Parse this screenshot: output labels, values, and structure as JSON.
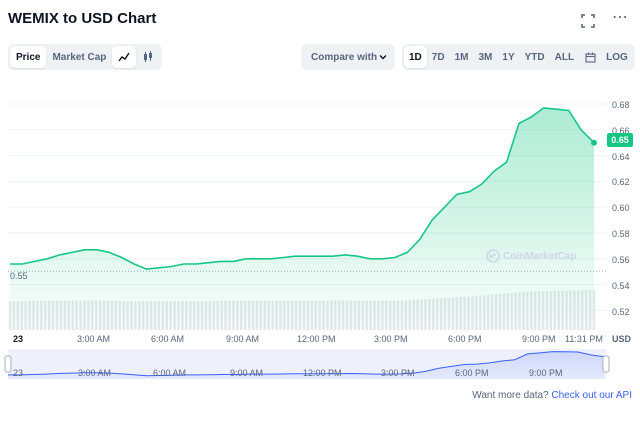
{
  "header": {
    "title": "WEMIX to USD Chart",
    "more_icon": "⋯"
  },
  "toolbar": {
    "tabs": [
      {
        "label": "Price",
        "active": true
      },
      {
        "label": "Market Cap",
        "active": false
      }
    ],
    "chart_types": [
      {
        "icon": "line-chart-icon",
        "active": true
      },
      {
        "icon": "candlestick-icon",
        "active": false
      }
    ],
    "compare_label": "Compare with",
    "ranges": [
      "1D",
      "7D",
      "1M",
      "3M",
      "1Y",
      "YTD",
      "ALL"
    ],
    "active_range": "1D",
    "log_label": "LOG"
  },
  "chart": {
    "current_price": "0.65",
    "open_price_label": "0.55",
    "currency": "USD",
    "watermark": "CoinMarketCap",
    "colors": {
      "line": "#16c784",
      "fill": "#16c784",
      "navigator_line": "#3861fb"
    }
  },
  "chart_data": {
    "type": "area",
    "title": "WEMIX to USD Chart",
    "xlabel": "",
    "ylabel": "USD",
    "x_ticks": [
      "23",
      "3:00 AM",
      "6:00 AM",
      "9:00 AM",
      "12:00 PM",
      "3:00 PM",
      "6:00 PM",
      "9:00 PM",
      "11:31 PM"
    ],
    "y_ticks": [
      "0.52",
      "0.54",
      "0.56",
      "0.58",
      "0.60",
      "0.62",
      "0.64",
      "0.66",
      "0.68"
    ],
    "ylim": [
      0.52,
      0.69
    ],
    "x_hours": [
      0,
      0.5,
      1,
      1.5,
      2,
      2.5,
      3,
      3.5,
      4,
      4.5,
      5,
      5.5,
      6,
      6.5,
      7,
      7.5,
      8,
      8.5,
      9,
      9.5,
      10,
      10.5,
      11,
      11.5,
      12,
      12.5,
      13,
      13.5,
      14,
      14.5,
      15,
      15.5,
      16,
      16.5,
      17,
      17.5,
      18,
      18.5,
      19,
      19.5,
      20,
      20.5,
      21,
      21.5,
      22,
      22.5,
      23,
      23.52
    ],
    "price": [
      0.556,
      0.556,
      0.558,
      0.56,
      0.563,
      0.565,
      0.567,
      0.567,
      0.565,
      0.561,
      0.556,
      0.552,
      0.553,
      0.554,
      0.556,
      0.556,
      0.557,
      0.558,
      0.558,
      0.56,
      0.56,
      0.56,
      0.561,
      0.562,
      0.562,
      0.562,
      0.562,
      0.563,
      0.562,
      0.56,
      0.56,
      0.561,
      0.565,
      0.575,
      0.59,
      0.6,
      0.61,
      0.612,
      0.618,
      0.628,
      0.635,
      0.665,
      0.67,
      0.677,
      0.676,
      0.675,
      0.66,
      0.65
    ],
    "volume_relative": [
      0.72,
      0.72,
      0.73,
      0.73,
      0.73,
      0.73,
      0.74,
      0.74,
      0.73,
      0.72,
      0.72,
      0.72,
      0.72,
      0.72,
      0.72,
      0.72,
      0.72,
      0.73,
      0.73,
      0.73,
      0.73,
      0.73,
      0.73,
      0.73,
      0.73,
      0.73,
      0.74,
      0.74,
      0.73,
      0.73,
      0.73,
      0.73,
      0.74,
      0.76,
      0.78,
      0.8,
      0.82,
      0.84,
      0.86,
      0.89,
      0.92,
      0.95,
      0.96,
      0.97,
      0.98,
      0.98,
      0.99,
      1.0
    ],
    "current_price": 0.65,
    "open_price": 0.55,
    "grid": true
  },
  "navigator": {
    "labels": [
      "23",
      "3:00 AM",
      "6:00 AM",
      "9:00 AM",
      "12:00 PM",
      "3:00 PM",
      "6:00 PM",
      "9:00 PM"
    ]
  },
  "footer": {
    "prefix": "Want more data?",
    "link": "Check out our API"
  }
}
